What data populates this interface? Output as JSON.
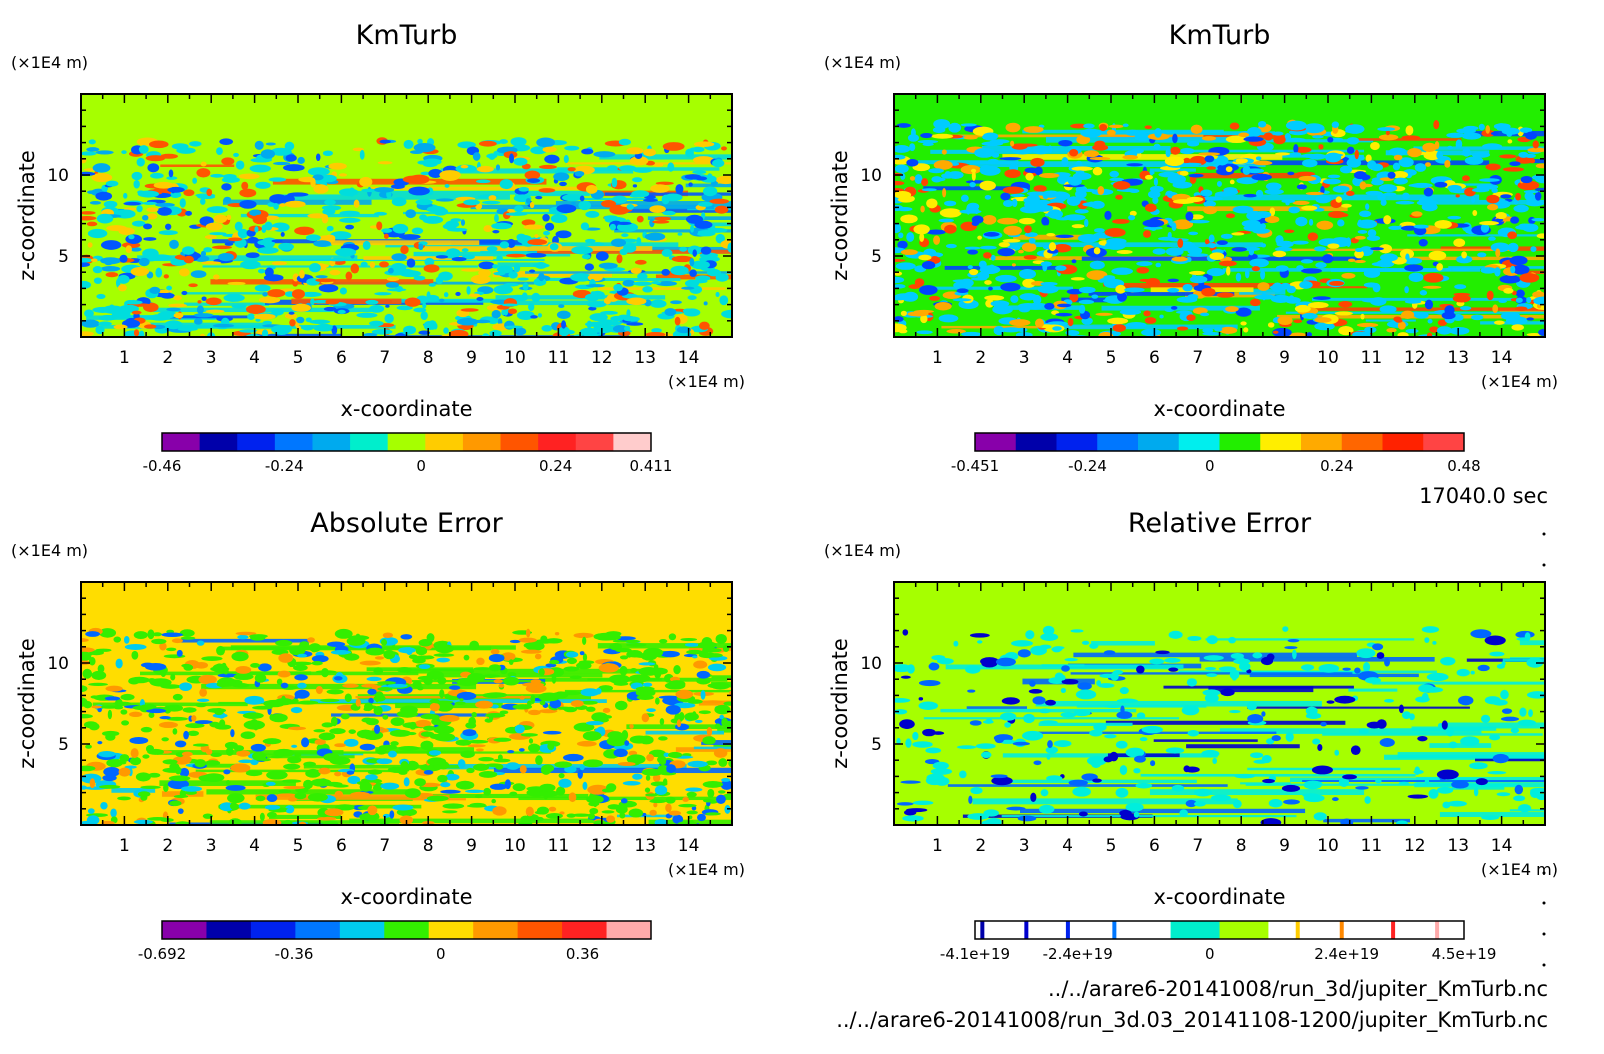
{
  "figure": {
    "time_label": "17040.0 sec",
    "files": [
      "../../arare6-20141008/run_3d/jupiter_KmTurb.nc",
      "../../arare6-20141008/run_3d.03_20141108-1200/jupiter_KmTurb.nc"
    ]
  },
  "chart_data": [
    {
      "type": "heatmap",
      "title": "KmTurb",
      "xlabel": "x-coordinate",
      "ylabel": "z-coordinate",
      "x_unit": "(×1E4 m)",
      "y_unit": "(×1E4 m)",
      "xlim": [
        0,
        15
      ],
      "ylim": [
        0,
        15
      ],
      "x_ticks": [
        "1",
        "2",
        "3",
        "4",
        "5",
        "6",
        "7",
        "8",
        "9",
        "10",
        "11",
        "12",
        "13",
        "14"
      ],
      "y_ticks": [
        "5",
        "10"
      ],
      "background_color": "#a6ff00",
      "colorbar": {
        "colors": [
          "#8800aa",
          "#0000aa",
          "#0022ee",
          "#0077ff",
          "#00aaee",
          "#00eecc",
          "#a6ff00",
          "#ffcc00",
          "#ff9900",
          "#ff5500",
          "#ff2222",
          "#ff4444",
          "#ffcccc"
        ],
        "tick_labels": [
          "-0.46",
          "-0.24",
          "0",
          "0.24",
          "0.411"
        ],
        "tick_fracs": [
          0,
          0.25,
          0.53,
          0.805,
          1.0
        ]
      }
    },
    {
      "type": "heatmap",
      "title": "KmTurb",
      "xlabel": "x-coordinate",
      "ylabel": "z-coordinate",
      "x_unit": "(×1E4 m)",
      "y_unit": "(×1E4 m)",
      "xlim": [
        0,
        15
      ],
      "ylim": [
        0,
        15
      ],
      "x_ticks": [
        "1",
        "2",
        "3",
        "4",
        "5",
        "6",
        "7",
        "8",
        "9",
        "10",
        "11",
        "12",
        "13",
        "14"
      ],
      "y_ticks": [
        "5",
        "10"
      ],
      "background_color": "#22ee00",
      "colorbar": {
        "colors": [
          "#8800aa",
          "#0000aa",
          "#0022ee",
          "#0077ff",
          "#00aaee",
          "#00eeee",
          "#22ee00",
          "#ffee00",
          "#ffaa00",
          "#ff6600",
          "#ff2200",
          "#ff4444"
        ],
        "tick_labels": [
          "-0.451",
          "-0.24",
          "0",
          "0.24",
          "0.48"
        ],
        "tick_fracs": [
          0,
          0.23,
          0.48,
          0.74,
          1.0
        ]
      }
    },
    {
      "type": "heatmap",
      "title": "Absolute Error",
      "xlabel": "x-coordinate",
      "ylabel": "z-coordinate",
      "x_unit": "(×1E4 m)",
      "y_unit": "(×1E4 m)",
      "xlim": [
        0,
        15
      ],
      "ylim": [
        0,
        15
      ],
      "x_ticks": [
        "1",
        "2",
        "3",
        "4",
        "5",
        "6",
        "7",
        "8",
        "9",
        "10",
        "11",
        "12",
        "13",
        "14"
      ],
      "y_ticks": [
        "5",
        "10"
      ],
      "background_color": "#ffdd00",
      "colorbar": {
        "colors": [
          "#8800aa",
          "#0000aa",
          "#0022ee",
          "#0077ff",
          "#00ccee",
          "#33ee00",
          "#ffdd00",
          "#ff9900",
          "#ff5500",
          "#ff2222",
          "#ffaaaa"
        ],
        "tick_labels": [
          "-0.692",
          "-0.36",
          "0",
          "0.36"
        ],
        "tick_fracs": [
          0,
          0.27,
          0.57,
          0.86
        ]
      }
    },
    {
      "type": "heatmap",
      "title": "Relative Error",
      "xlabel": "x-coordinate",
      "ylabel": "z-coordinate",
      "x_unit": "(×1E4 m)",
      "y_unit": "(×1E4 m)",
      "xlim": [
        0,
        15
      ],
      "ylim": [
        0,
        15
      ],
      "x_ticks": [
        "1",
        "2",
        "3",
        "4",
        "5",
        "6",
        "7",
        "8",
        "9",
        "10",
        "11",
        "12",
        "13",
        "14"
      ],
      "y_ticks": [
        "5",
        "10"
      ],
      "background_color": "#a6ff00",
      "colorbar": {
        "colors": [
          "#ffffff",
          "#ffffff",
          "#ffffff",
          "#ffffff",
          "#00eecc",
          "#a6ff00",
          "#ffffff",
          "#ffffff",
          "#ffffff",
          "#ffffff"
        ],
        "marks": [
          {
            "pos": 0.015,
            "color": "#0000aa"
          },
          {
            "pos": 0.105,
            "color": "#0000cc"
          },
          {
            "pos": 0.19,
            "color": "#0022ee"
          },
          {
            "pos": 0.285,
            "color": "#0077ff"
          },
          {
            "pos": 0.66,
            "color": "#ffcc00"
          },
          {
            "pos": 0.75,
            "color": "#ff8800"
          },
          {
            "pos": 0.855,
            "color": "#ff2222"
          },
          {
            "pos": 0.945,
            "color": "#ffaaaa"
          }
        ],
        "tick_labels": [
          "-4.1e+19",
          "-2.4e+19",
          "0",
          "2.4e+19",
          "4.5e+19"
        ],
        "tick_fracs": [
          0,
          0.21,
          0.48,
          0.76,
          1.0
        ]
      }
    }
  ]
}
